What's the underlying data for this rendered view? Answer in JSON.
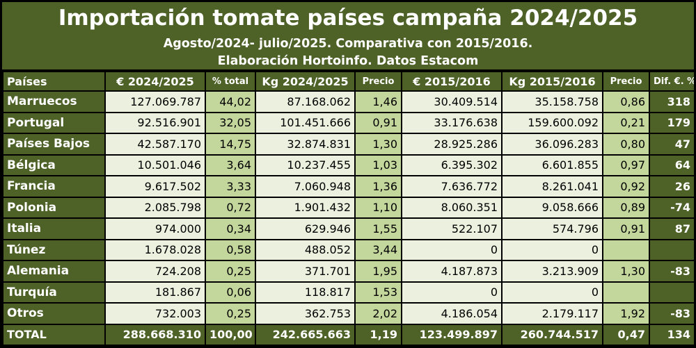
{
  "title": "Importación tomate países campaña 2024/2025",
  "subtitle_1": "Agosto/2024- julio/2025. Comparativa con 2015/2016.",
  "subtitle_2": "Elaboración Hortoinfo. Datos Estacom",
  "colors": {
    "header_green": "#4e6228",
    "light_cell": "#ebf1de",
    "mid_cell": "#c3d69b",
    "text_white": "#ffffff"
  },
  "chart_data": {
    "type": "table",
    "columns": [
      "Países",
      "€ 2024/2025",
      "% total",
      "Kg 2024/2025",
      "Precio",
      "€ 2015/2016",
      "Kg 2015/2016",
      "Precio",
      "Dif. €. %"
    ],
    "rows": [
      [
        "Marruecos",
        "127.069.787",
        "44,02",
        "87.168.062",
        "1,46",
        "30.409.514",
        "35.158.758",
        "0,86",
        "318"
      ],
      [
        "Portugal",
        "92.516.901",
        "32,05",
        "101.451.666",
        "0,91",
        "33.176.638",
        "159.600.092",
        "0,21",
        "179"
      ],
      [
        "Países Bajos",
        "42.587.170",
        "14,75",
        "32.874.831",
        "1,30",
        "28.925.286",
        "36.096.283",
        "0,80",
        "47"
      ],
      [
        "Bélgica",
        "10.501.046",
        "3,64",
        "10.237.455",
        "1,03",
        "6.395.302",
        "6.601.855",
        "0,97",
        "64"
      ],
      [
        "Francia",
        "9.617.502",
        "3,33",
        "7.060.948",
        "1,36",
        "7.636.772",
        "8.261.041",
        "0,92",
        "26"
      ],
      [
        "Polonia",
        "2.085.798",
        "0,72",
        "1.901.432",
        "1,10",
        "8.060.351",
        "9.058.666",
        "0,89",
        "-74"
      ],
      [
        "Italia",
        "974.000",
        "0,34",
        "629.946",
        "1,55",
        "522.107",
        "574.796",
        "0,91",
        "87"
      ],
      [
        "Túnez",
        "1.678.028",
        "0,58",
        "488.052",
        "3,44",
        "0",
        "0",
        "",
        ""
      ],
      [
        "Alemania",
        "724.208",
        "0,25",
        "371.701",
        "1,95",
        "4.187.873",
        "3.213.909",
        "1,30",
        "-83"
      ],
      [
        "Turquía",
        "181.867",
        "0,06",
        "118.817",
        "1,53",
        "0",
        "0",
        "",
        ""
      ],
      [
        "Otros",
        "732.003",
        "0,25",
        "362.753",
        "2,02",
        "4.186.054",
        "2.179.117",
        "1,92",
        "-83"
      ]
    ],
    "total": [
      "TOTAL",
      "288.668.310",
      "100,00",
      "242.665.663",
      "1,19",
      "123.499.897",
      "260.744.517",
      "0,47",
      "134"
    ]
  }
}
